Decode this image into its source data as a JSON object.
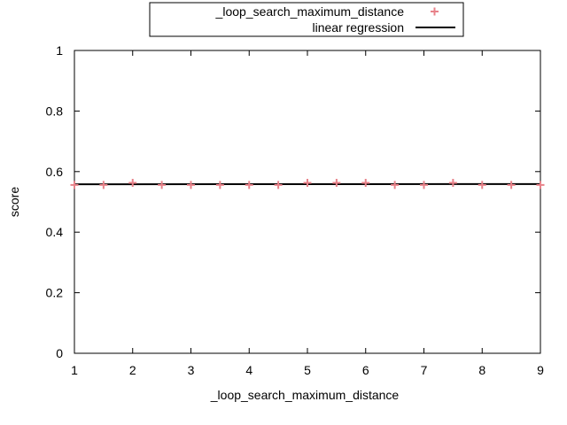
{
  "chart_data": {
    "type": "scatter",
    "xlabel": "_loop_search_maximum_distance",
    "ylabel": "score",
    "xlim": [
      1,
      9
    ],
    "ylim": [
      0,
      1
    ],
    "x_ticks": [
      "1",
      "2",
      "3",
      "4",
      "5",
      "6",
      "7",
      "8",
      "9"
    ],
    "y_ticks": [
      "0",
      "0.2",
      "0.4",
      "0.6",
      "0.8",
      "1"
    ],
    "grid": false,
    "legend_position": "top-center",
    "series": [
      {
        "name": "_loop_search_maximum_distance",
        "style": "points",
        "marker": "plus",
        "color": "#e8828a",
        "x": [
          1,
          1.5,
          2,
          2.5,
          3,
          3.5,
          4,
          4.5,
          5,
          5.5,
          6,
          6.5,
          7,
          7.5,
          8,
          8.5,
          9
        ],
        "y": [
          0.556,
          0.556,
          0.563,
          0.556,
          0.556,
          0.556,
          0.556,
          0.556,
          0.563,
          0.563,
          0.563,
          0.556,
          0.556,
          0.563,
          0.556,
          0.556,
          0.556
        ]
      },
      {
        "name": "linear regression",
        "style": "line",
        "color": "#000000",
        "x": [
          1,
          9
        ],
        "y": [
          0.558,
          0.559
        ]
      }
    ]
  }
}
